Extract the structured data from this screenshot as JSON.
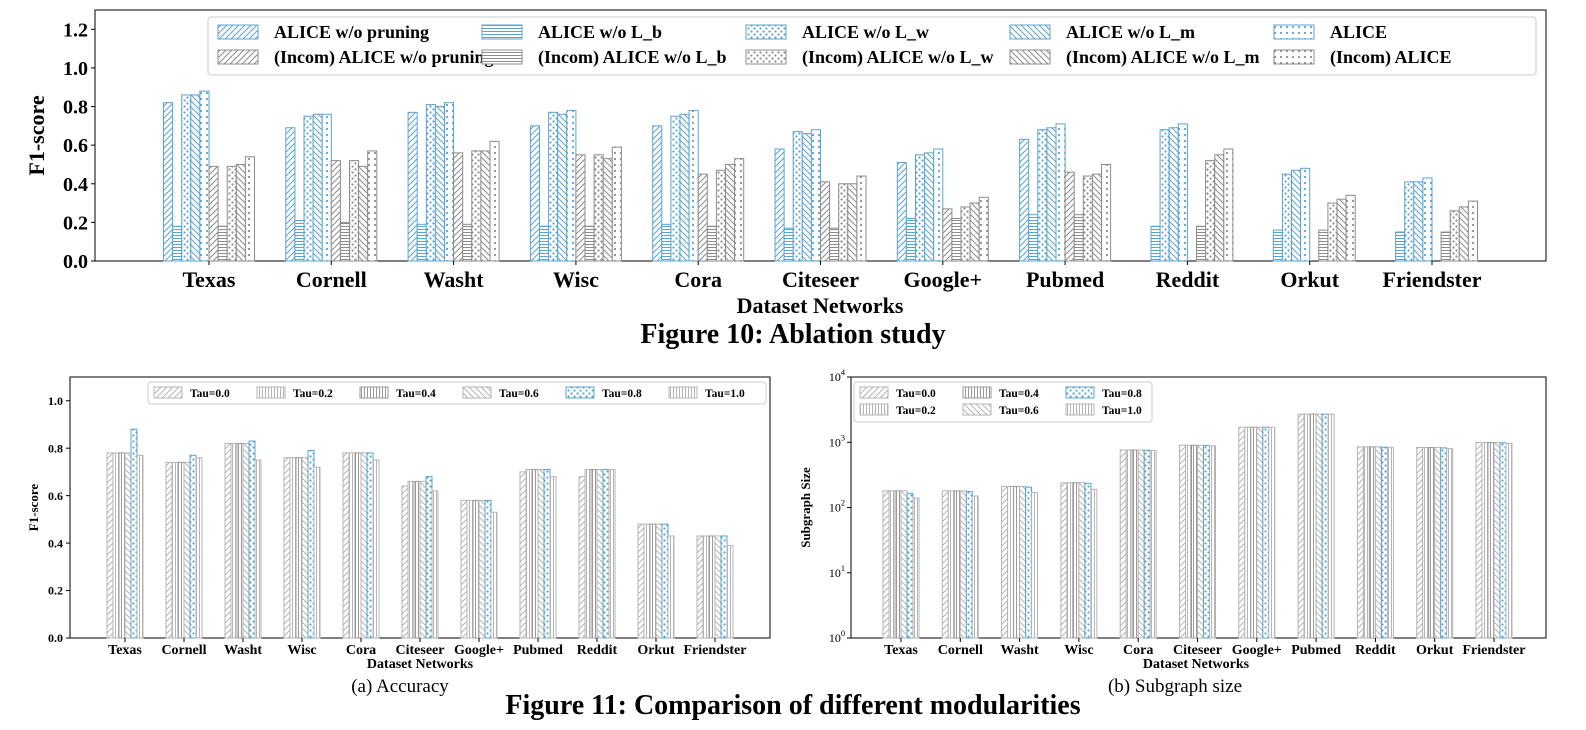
{
  "figure10": {
    "caption": "Figure 10: Ablation study",
    "chart_data": {
      "type": "bar",
      "categories": [
        "Texas",
        "Cornell",
        "Washt",
        "Wisc",
        "Cora",
        "Citeseer",
        "Google+",
        "Pubmed",
        "Reddit",
        "Orkut",
        "Friendster"
      ],
      "ylabel": "F1-score",
      "xlabel": "Dataset Networks",
      "ylim": [
        0,
        1.3
      ],
      "yticks": [
        "0.0",
        "0.2",
        "0.4",
        "0.6",
        "0.8",
        "1.0",
        "1.2"
      ],
      "grid": false,
      "legend_placement": "top",
      "series": [
        {
          "name": "ALICE w/o pruning",
          "values": [
            0.82,
            0.69,
            0.77,
            0.7,
            0.7,
            0.58,
            0.51,
            0.63,
            0.0,
            0.0,
            0.0
          ],
          "color": "#5ba3cf",
          "pattern": "diag"
        },
        {
          "name": "ALICE w/o L_b",
          "values": [
            0.18,
            0.21,
            0.19,
            0.18,
            0.19,
            0.17,
            0.22,
            0.24,
            0.18,
            0.16,
            0.15
          ],
          "color": "#5ba3cf",
          "pattern": "hline"
        },
        {
          "name": "ALICE w/o L_w",
          "values": [
            0.86,
            0.75,
            0.81,
            0.77,
            0.75,
            0.67,
            0.55,
            0.68,
            0.68,
            0.45,
            0.41
          ],
          "color": "#5ba3cf",
          "pattern": "dots"
        },
        {
          "name": "ALICE w/o L_m",
          "values": [
            0.86,
            0.76,
            0.8,
            0.76,
            0.76,
            0.66,
            0.56,
            0.69,
            0.69,
            0.47,
            0.41
          ],
          "color": "#5ba3cf",
          "pattern": "back"
        },
        {
          "name": "ALICE",
          "values": [
            0.88,
            0.76,
            0.82,
            0.78,
            0.78,
            0.68,
            0.58,
            0.71,
            0.71,
            0.48,
            0.43
          ],
          "color": "#5ba3cf",
          "pattern": "dots2"
        },
        {
          "name": "(Incom) ALICE w/o pruning",
          "values": [
            0.49,
            0.52,
            0.56,
            0.55,
            0.45,
            0.41,
            0.27,
            0.46,
            0.0,
            0.0,
            0.0
          ],
          "color": "#8c8c8c",
          "pattern": "diag"
        },
        {
          "name": "(Incom) ALICE w/o L_b",
          "values": [
            0.18,
            0.2,
            0.19,
            0.18,
            0.18,
            0.17,
            0.22,
            0.24,
            0.18,
            0.16,
            0.15
          ],
          "color": "#8c8c8c",
          "pattern": "hline"
        },
        {
          "name": "(Incom) ALICE w/o L_w",
          "values": [
            0.49,
            0.52,
            0.57,
            0.55,
            0.47,
            0.4,
            0.28,
            0.44,
            0.52,
            0.3,
            0.26
          ],
          "color": "#8c8c8c",
          "pattern": "dots"
        },
        {
          "name": "(Incom) ALICE w/o L_m",
          "values": [
            0.5,
            0.49,
            0.57,
            0.53,
            0.5,
            0.4,
            0.3,
            0.45,
            0.55,
            0.32,
            0.28
          ],
          "color": "#8c8c8c",
          "pattern": "back"
        },
        {
          "name": "(Incom) ALICE",
          "values": [
            0.54,
            0.57,
            0.62,
            0.59,
            0.53,
            0.44,
            0.33,
            0.5,
            0.58,
            0.34,
            0.31
          ],
          "color": "#8c8c8c",
          "pattern": "dots2"
        }
      ]
    }
  },
  "figure11": {
    "caption": "Figure 11: Comparison of different modularities",
    "panels": [
      {
        "caption": "(a)  Accuracy",
        "chart_data": {
          "type": "bar",
          "categories": [
            "Texas",
            "Cornell",
            "Washt",
            "Wisc",
            "Cora",
            "Citeseer",
            "Google+",
            "Pubmed",
            "Reddit",
            "Orkut",
            "Friendster"
          ],
          "ylabel": "F1-score",
          "xlabel": "Dataset Networks",
          "ylim": [
            0,
            1.1
          ],
          "yticks": [
            "0.0",
            "0.2",
            "0.4",
            "0.6",
            "0.8",
            "1.0"
          ],
          "scale": "linear",
          "legend_placement": "top",
          "series": [
            {
              "name": "Tau=0.0",
              "values": [
                0.78,
                0.74,
                0.82,
                0.76,
                0.78,
                0.64,
                0.58,
                0.7,
                0.68,
                0.48,
                0.43
              ],
              "color": "#b5b5b5",
              "pattern": "diag"
            },
            {
              "name": "Tau=0.2",
              "values": [
                0.78,
                0.74,
                0.82,
                0.76,
                0.78,
                0.66,
                0.58,
                0.71,
                0.71,
                0.48,
                0.43
              ],
              "color": "#b5b5b5",
              "pattern": "vline"
            },
            {
              "name": "Tau=0.4",
              "values": [
                0.78,
                0.74,
                0.82,
                0.76,
                0.78,
                0.66,
                0.58,
                0.71,
                0.71,
                0.48,
                0.43
              ],
              "color": "#9a9a9a",
              "pattern": "vline"
            },
            {
              "name": "Tau=0.6",
              "values": [
                0.78,
                0.74,
                0.82,
                0.76,
                0.78,
                0.66,
                0.58,
                0.71,
                0.71,
                0.48,
                0.43
              ],
              "color": "#b5b5b5",
              "pattern": "back"
            },
            {
              "name": "Tau=0.8",
              "values": [
                0.88,
                0.77,
                0.83,
                0.79,
                0.78,
                0.68,
                0.58,
                0.71,
                0.71,
                0.48,
                0.43
              ],
              "color": "#5ba3cf",
              "pattern": "dots"
            },
            {
              "name": "Tau=1.0",
              "values": [
                0.77,
                0.76,
                0.75,
                0.72,
                0.75,
                0.62,
                0.53,
                0.68,
                0.71,
                0.43,
                0.39
              ],
              "color": "#b5b5b5",
              "pattern": "vline"
            }
          ]
        }
      },
      {
        "caption": "(b)  Subgraph size",
        "chart_data": {
          "type": "bar",
          "categories": [
            "Texas",
            "Cornell",
            "Washt",
            "Wisc",
            "Cora",
            "Citeseer",
            "Google+",
            "Pubmed",
            "Reddit",
            "Orkut",
            "Friendster"
          ],
          "ylabel": "Subgraph Size",
          "xlabel": "Dataset Networks",
          "ylim": [
            1,
            10000
          ],
          "scale": "log",
          "ytick_base": "10",
          "ytick_exponents": [
            "0",
            "1",
            "2",
            "3",
            "4"
          ],
          "legend_placement": "top-left",
          "series": [
            {
              "name": "Tau=0.0",
              "values": [
                180,
                180,
                210,
                240,
                760,
                900,
                1700,
                2700,
                850,
                830,
                990
              ],
              "color": "#b5b5b5",
              "pattern": "diag"
            },
            {
              "name": "Tau=0.2",
              "values": [
                180,
                180,
                210,
                240,
                760,
                900,
                1700,
                2700,
                850,
                830,
                990
              ],
              "color": "#b5b5b5",
              "pattern": "vline"
            },
            {
              "name": "Tau=0.4",
              "values": [
                180,
                180,
                210,
                240,
                760,
                900,
                1700,
                2700,
                850,
                830,
                990
              ],
              "color": "#9a9a9a",
              "pattern": "vline"
            },
            {
              "name": "Tau=0.6",
              "values": [
                180,
                180,
                210,
                240,
                760,
                900,
                1700,
                2700,
                850,
                830,
                990
              ],
              "color": "#b5b5b5",
              "pattern": "back"
            },
            {
              "name": "Tau=0.8",
              "values": [
                165,
                175,
                205,
                235,
                755,
                890,
                1700,
                2700,
                840,
                820,
                980
              ],
              "color": "#5ba3cf",
              "pattern": "dots"
            },
            {
              "name": "Tau=1.0",
              "values": [
                140,
                150,
                170,
                190,
                750,
                880,
                1700,
                2700,
                840,
                800,
                960
              ],
              "color": "#b5b5b5",
              "pattern": "vline"
            }
          ]
        }
      }
    ]
  }
}
